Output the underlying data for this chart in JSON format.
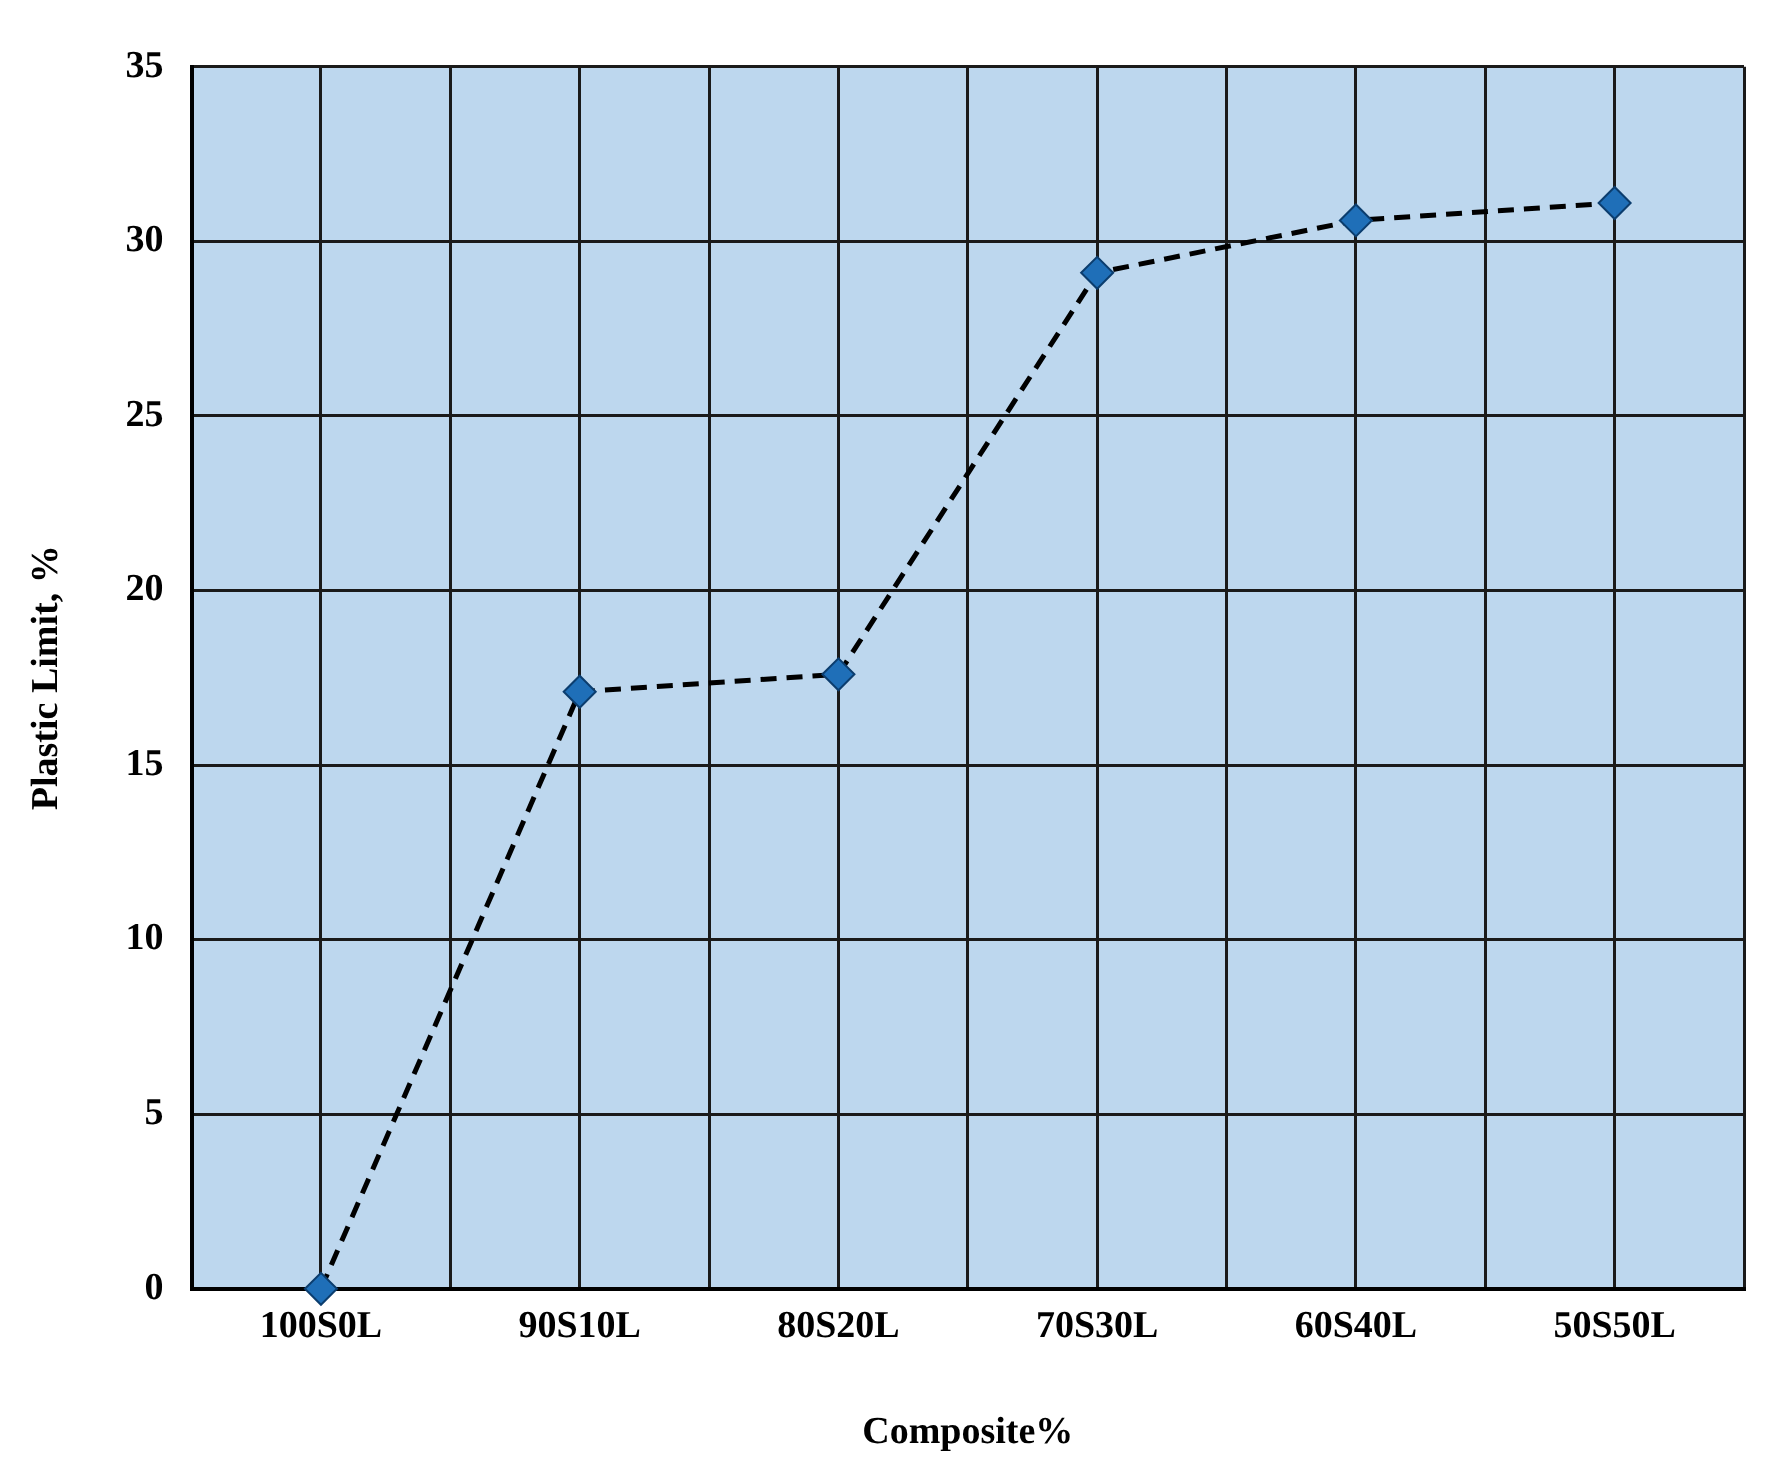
{
  "chart_data": {
    "type": "line",
    "xlabel": "Composite%",
    "ylabel": "Plastic Limit, %",
    "categories": [
      "100S0L",
      "90S10L",
      "80S20L",
      "70S30L",
      "60S40L",
      "50S50L"
    ],
    "series": [
      {
        "color": "#1f6fb8",
        "values": [
          0,
          17.1,
          17.6,
          29.1,
          30.6,
          31.1
        ]
      }
    ],
    "ylim": [
      0,
      35
    ],
    "yticks": [
      0,
      5,
      10,
      15,
      20,
      25,
      30,
      35
    ],
    "grid": true,
    "marker": "diamond",
    "line_style": "dashed"
  }
}
